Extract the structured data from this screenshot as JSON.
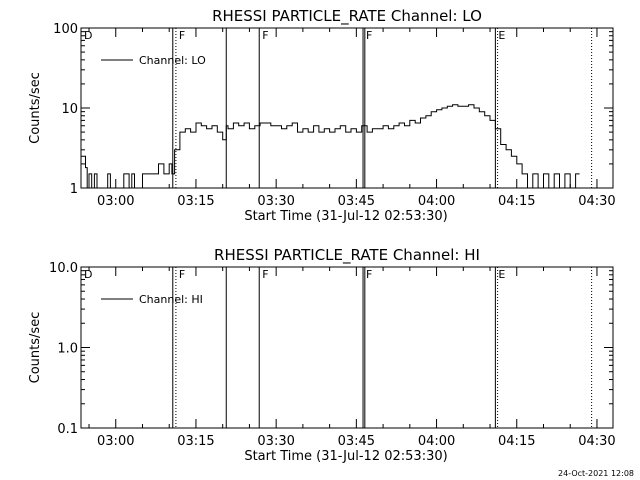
{
  "footer_text": "24-Oct-2021 12:08",
  "chart_data": [
    {
      "type": "line",
      "title": "RHESSI PARTICLE_RATE Channel: LO",
      "xlabel": "Start Time (31-Jul-12 02:53:30)",
      "ylabel": "Counts/sec",
      "scale_y": "log",
      "ylim": [
        1,
        100
      ],
      "xlim": [
        "02:53:30",
        "04:33:00"
      ],
      "x_ticks": [
        "03:00",
        "03:15",
        "03:30",
        "03:45",
        "04:00",
        "04:15",
        "04:30"
      ],
      "y_ticks": [
        "1",
        "10",
        "100"
      ],
      "legend": {
        "position": "top-left",
        "entries": [
          "Channel: LO"
        ]
      },
      "grid": false,
      "markers": [
        {
          "label": "D",
          "time": "02:53:30",
          "style": "dotted"
        },
        {
          "label": "F",
          "time": "03:11:15",
          "style": "dotted"
        },
        {
          "label": "",
          "time": "03:10:40",
          "style": "solid"
        },
        {
          "label": "",
          "time": "03:20:40",
          "style": "solid"
        },
        {
          "label": "F",
          "time": "03:26:50",
          "style": "solid"
        },
        {
          "label": "F",
          "time": "03:46:15",
          "style": "solid"
        },
        {
          "label": "",
          "time": "03:46:35",
          "style": "solid"
        },
        {
          "label": "E",
          "time": "04:11:00",
          "style": "solid"
        },
        {
          "label": "",
          "time": "04:11:25",
          "style": "dotted"
        },
        {
          "label": "",
          "time": "04:29:00",
          "style": "dotted"
        }
      ],
      "series": [
        {
          "name": "Channel: LO",
          "x": [
            "02:53:30",
            "02:54:20",
            "02:54:40",
            "02:55:00",
            "02:55:30",
            "02:56:00",
            "02:56:30",
            "02:57:00",
            "02:58:00",
            "02:58:30",
            "02:59:00",
            "03:00:30",
            "03:01:00",
            "03:01:30",
            "03:02:30",
            "03:03:00",
            "03:03:30",
            "03:04:00",
            "03:05:00",
            "03:06:00",
            "03:07:00",
            "03:08:00",
            "03:09:00",
            "03:10:00",
            "03:10:30",
            "03:11:00",
            "03:12:00",
            "03:13:00",
            "03:14:00",
            "03:15:00",
            "03:16:00",
            "03:17:00",
            "03:18:00",
            "03:19:00",
            "03:20:00",
            "03:20:40",
            "03:21:00",
            "03:22:00",
            "03:23:00",
            "03:24:00",
            "03:25:00",
            "03:26:00",
            "03:27:00",
            "03:28:00",
            "03:29:00",
            "03:30:00",
            "03:31:00",
            "03:32:00",
            "03:33:00",
            "03:34:00",
            "03:35:00",
            "03:36:00",
            "03:37:00",
            "03:38:00",
            "03:39:00",
            "03:40:00",
            "03:41:00",
            "03:42:00",
            "03:43:00",
            "03:44:00",
            "03:45:00",
            "03:46:00",
            "03:47:00",
            "03:48:00",
            "03:49:00",
            "03:50:00",
            "03:51:00",
            "03:52:00",
            "03:53:00",
            "03:54:00",
            "03:55:00",
            "03:56:00",
            "03:57:00",
            "03:58:00",
            "03:59:00",
            "04:00:00",
            "04:01:00",
            "04:02:00",
            "04:03:00",
            "04:04:00",
            "04:05:00",
            "04:06:00",
            "04:07:00",
            "04:08:00",
            "04:09:00",
            "04:10:00",
            "04:11:00",
            "04:12:00",
            "04:13:00",
            "04:14:00",
            "04:15:00",
            "04:16:00",
            "04:17:00",
            "04:18:00",
            "04:19:00",
            "04:20:00",
            "04:21:00",
            "04:22:00",
            "04:23:00",
            "04:24:00",
            "04:25:00",
            "04:26:00"
          ],
          "y": [
            2.5,
            1.8,
            1,
            1.5,
            1,
            1.5,
            1,
            1,
            1,
            1.5,
            1,
            1,
            1,
            1.5,
            1,
            1.5,
            1,
            1,
            1.5,
            1.5,
            1.5,
            2,
            1.5,
            2,
            1.5,
            3,
            5,
            5.5,
            5,
            6.5,
            6,
            5.5,
            6,
            5,
            4,
            6,
            5.5,
            6.5,
            6,
            6.5,
            5.5,
            6,
            6.5,
            6.5,
            6,
            6,
            5.5,
            6,
            6.5,
            5,
            5.5,
            5,
            6,
            5,
            5.5,
            5,
            5.5,
            6,
            5,
            5.5,
            5,
            6,
            5,
            5.5,
            5.5,
            6,
            5.5,
            6,
            6.5,
            6,
            7,
            6.5,
            7.5,
            8,
            9,
            9.5,
            10,
            10.5,
            11,
            10.5,
            10.5,
            11,
            10,
            9,
            8,
            7,
            5.5,
            3.5,
            3,
            2.5,
            2,
            1.5,
            1,
            1.5,
            1,
            1.5,
            1,
            1.5,
            1,
            1.5,
            1,
            1.5
          ]
        }
      ]
    },
    {
      "type": "line",
      "title": "RHESSI PARTICLE_RATE Channel: HI",
      "xlabel": "Start Time (31-Jul-12 02:53:30)",
      "ylabel": "Counts/sec",
      "scale_y": "log",
      "ylim": [
        0.1,
        10
      ],
      "xlim": [
        "02:53:30",
        "04:33:00"
      ],
      "x_ticks": [
        "03:00",
        "03:15",
        "03:30",
        "03:45",
        "04:00",
        "04:15",
        "04:30"
      ],
      "y_ticks": [
        "0.1",
        "1.0",
        "10.0"
      ],
      "legend": {
        "position": "top-left",
        "entries": [
          "Channel: HI"
        ]
      },
      "grid": false,
      "markers": [
        {
          "label": "D",
          "time": "02:53:30",
          "style": "dotted"
        },
        {
          "label": "F",
          "time": "03:11:15",
          "style": "dotted"
        },
        {
          "label": "",
          "time": "03:10:40",
          "style": "solid"
        },
        {
          "label": "",
          "time": "03:20:40",
          "style": "solid"
        },
        {
          "label": "F",
          "time": "03:26:50",
          "style": "solid"
        },
        {
          "label": "F",
          "time": "03:46:15",
          "style": "solid"
        },
        {
          "label": "",
          "time": "03:46:35",
          "style": "solid"
        },
        {
          "label": "E",
          "time": "04:11:00",
          "style": "solid"
        },
        {
          "label": "",
          "time": "04:11:25",
          "style": "dotted"
        },
        {
          "label": "",
          "time": "04:29:00",
          "style": "dotted"
        }
      ],
      "series": [
        {
          "name": "Channel: HI",
          "x": [],
          "y": []
        }
      ]
    }
  ]
}
